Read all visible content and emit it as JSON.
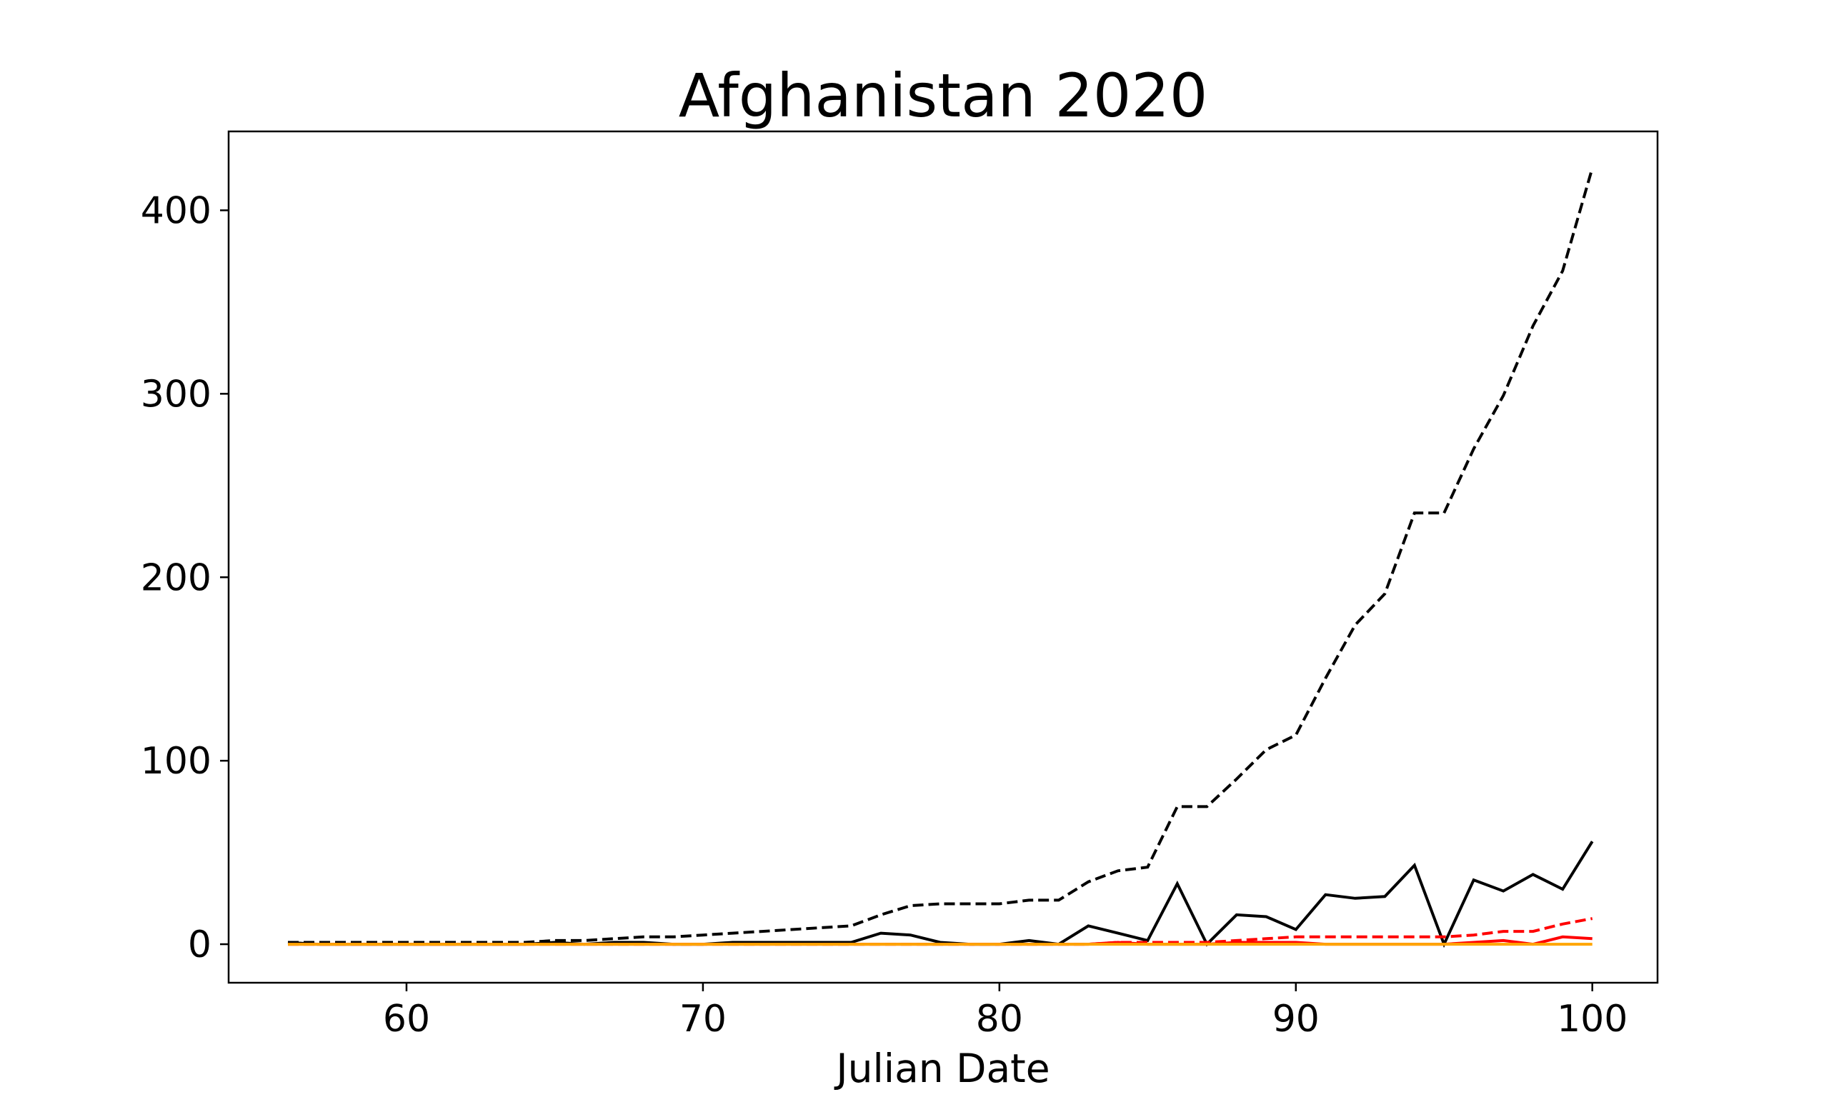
{
  "chart_data": {
    "type": "line",
    "title": "Afghanistan 2020",
    "xlabel": "Julian Date",
    "ylabel": "",
    "xlim": [
      54,
      102.2
    ],
    "ylim": [
      -21,
      443
    ],
    "xticks": [
      60,
      70,
      80,
      90,
      100
    ],
    "yticks": [
      0,
      100,
      200,
      300,
      400
    ],
    "grid": false,
    "x": [
      56,
      57,
      58,
      59,
      60,
      61,
      62,
      63,
      64,
      65,
      66,
      67,
      68,
      69,
      70,
      71,
      72,
      73,
      74,
      75,
      76,
      77,
      78,
      79,
      80,
      81,
      82,
      83,
      84,
      85,
      86,
      87,
      88,
      89,
      90,
      91,
      92,
      93,
      94,
      95,
      96,
      97,
      98,
      99,
      100
    ],
    "series": [
      {
        "color": "#000000",
        "dash": "dashed",
        "values": [
          1,
          1,
          1,
          1,
          1,
          1,
          1,
          1,
          1,
          2,
          2,
          3,
          4,
          4,
          5,
          6,
          7,
          8,
          9,
          10,
          16,
          21,
          22,
          22,
          22,
          24,
          24,
          34,
          40,
          42,
          75,
          75,
          90,
          106,
          114,
          145,
          174,
          191,
          235,
          235,
          270,
          299,
          337,
          367,
          423
        ]
      },
      {
        "color": "#000000",
        "dash": "solid",
        "values": [
          1,
          0,
          0,
          0,
          0,
          0,
          0,
          0,
          0,
          1,
          0,
          1,
          1,
          0,
          0,
          1,
          1,
          1,
          1,
          1,
          6,
          5,
          1,
          0,
          0,
          2,
          0,
          10,
          6,
          2,
          33,
          0,
          16,
          15,
          8,
          27,
          25,
          26,
          43,
          0,
          35,
          29,
          38,
          30,
          56
        ]
      },
      {
        "color": "#ff0000",
        "dash": "dashed",
        "values": [
          0,
          0,
          0,
          0,
          0,
          0,
          0,
          0,
          0,
          0,
          0,
          0,
          0,
          0,
          0,
          0,
          0,
          0,
          0,
          0,
          0,
          0,
          0,
          0,
          0,
          0,
          0,
          0,
          1,
          1,
          1,
          1,
          2,
          3,
          4,
          4,
          4,
          4,
          4,
          4,
          5,
          7,
          7,
          11,
          14
        ]
      },
      {
        "color": "#ff0000",
        "dash": "solid",
        "values": [
          0,
          0,
          0,
          0,
          0,
          0,
          0,
          0,
          0,
          0,
          0,
          0,
          0,
          0,
          0,
          0,
          0,
          0,
          0,
          0,
          0,
          0,
          0,
          0,
          0,
          0,
          0,
          0,
          1,
          0,
          0,
          0,
          1,
          1,
          1,
          0,
          0,
          0,
          0,
          0,
          1,
          2,
          0,
          4,
          3
        ]
      },
      {
        "color": "#ffa500",
        "dash": "solid",
        "values": [
          0,
          0,
          0,
          0,
          0,
          0,
          0,
          0,
          0,
          0,
          0,
          0,
          0,
          0,
          0,
          0,
          0,
          0,
          0,
          0,
          0,
          0,
          0,
          0,
          0,
          0,
          0,
          0,
          0,
          0,
          0,
          0,
          0,
          0,
          0,
          0,
          0,
          0,
          0,
          0,
          0,
          0,
          0,
          0,
          0
        ]
      }
    ]
  }
}
